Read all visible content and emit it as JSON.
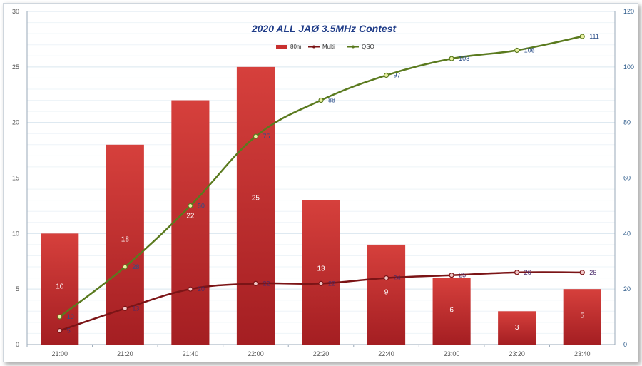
{
  "chart_data": {
    "type": "bar",
    "title": "2020 ALL JAØ 3.5MHz Contest",
    "categories": [
      "21:00",
      "21:20",
      "21:40",
      "22:00",
      "22:20",
      "22:40",
      "23:00",
      "23:20",
      "23:40"
    ],
    "legend_position": "top-center",
    "grid": true,
    "y_left": {
      "range": [
        0,
        30
      ],
      "ticks": [
        "0",
        "5",
        "10",
        "15",
        "20",
        "25",
        "30"
      ]
    },
    "y_right": {
      "range": [
        0,
        120
      ],
      "ticks": [
        "0",
        "20",
        "40",
        "60",
        "80",
        "100",
        "120"
      ]
    },
    "series": [
      {
        "name": "80m",
        "type": "bar",
        "axis": "left",
        "color": "#c8302f",
        "values": [
          10,
          18,
          22,
          25,
          13,
          9,
          6,
          3,
          5
        ],
        "labels": [
          "10",
          "18",
          "22",
          "25",
          "13",
          "9",
          "6",
          "3",
          "5"
        ]
      },
      {
        "name": "Multi",
        "type": "line",
        "axis": "right",
        "color": "#7b1416",
        "values": [
          5,
          13,
          20,
          22,
          22,
          24,
          25,
          26,
          26
        ],
        "labels": [
          "5",
          "13",
          "20",
          "22",
          "22",
          "24",
          "25",
          "26",
          "26"
        ]
      },
      {
        "name": "QSO",
        "type": "line",
        "axis": "right",
        "color": "#5a7a1e",
        "values": [
          10,
          28,
          50,
          75,
          88,
          97,
          103,
          106,
          111
        ],
        "labels": [
          "10",
          "28",
          "50",
          "75",
          "88",
          "97",
          "103",
          "106",
          "111"
        ]
      }
    ]
  }
}
